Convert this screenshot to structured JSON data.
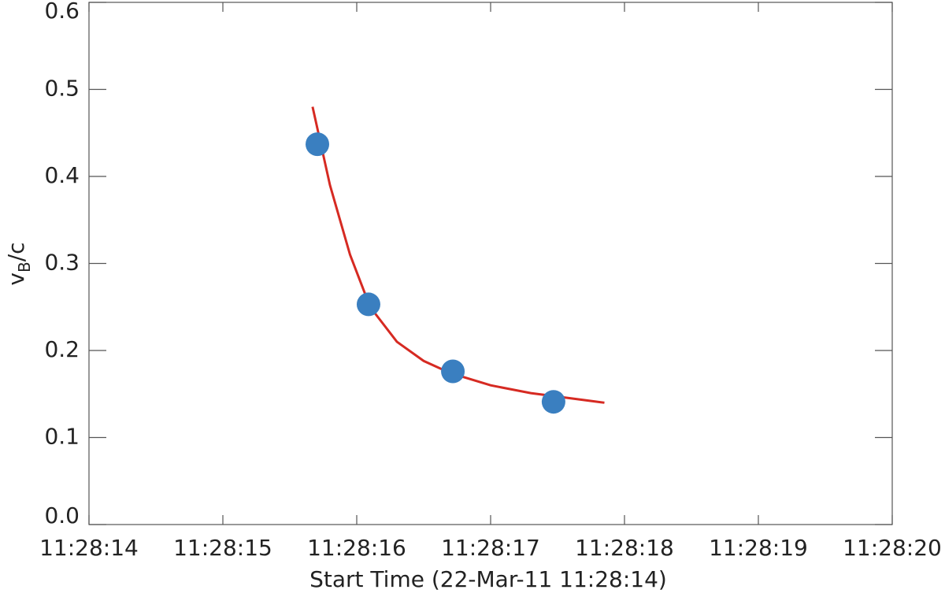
{
  "chart_data": {
    "type": "scatter",
    "xlabel": "Start Time (22-Mar-11 11:28:14)",
    "ylabel": [
      "v",
      "B",
      "/c"
    ],
    "xlim": [
      0,
      6
    ],
    "ylim": [
      0,
      0.6
    ],
    "xticks": [
      {
        "value": 0,
        "label": "11:28:14"
      },
      {
        "value": 1,
        "label": "11:28:15"
      },
      {
        "value": 2,
        "label": "11:28:16"
      },
      {
        "value": 3,
        "label": "11:28:17"
      },
      {
        "value": 4,
        "label": "11:28:18"
      },
      {
        "value": 5,
        "label": "11:28:19"
      },
      {
        "value": 6,
        "label": "11:28:20"
      }
    ],
    "yticks": [
      {
        "value": 0,
        "label": "0.0"
      },
      {
        "value": 0.1,
        "label": "0.1"
      },
      {
        "value": 0.2,
        "label": "0.2"
      },
      {
        "value": 0.3,
        "label": "0.3"
      },
      {
        "value": 0.4,
        "label": "0.4"
      },
      {
        "value": 0.5,
        "label": "0.5"
      },
      {
        "value": 0.6,
        "label": "0.6"
      }
    ],
    "series": [
      {
        "type": "scatter",
        "color": "#3a7fc0",
        "x": [
          1.706,
          2.088,
          2.718,
          3.47
        ],
        "values": [
          0.437,
          0.253,
          0.176,
          0.141
        ]
      },
      {
        "type": "line",
        "color": "#d62a22",
        "x": [
          1.67,
          1.8,
          1.95,
          2.1,
          2.3,
          2.5,
          2.7,
          3.0,
          3.3,
          3.6,
          3.85
        ],
        "values": [
          0.48,
          0.39,
          0.31,
          0.25,
          0.21,
          0.188,
          0.174,
          0.16,
          0.151,
          0.145,
          0.14
        ]
      }
    ]
  }
}
